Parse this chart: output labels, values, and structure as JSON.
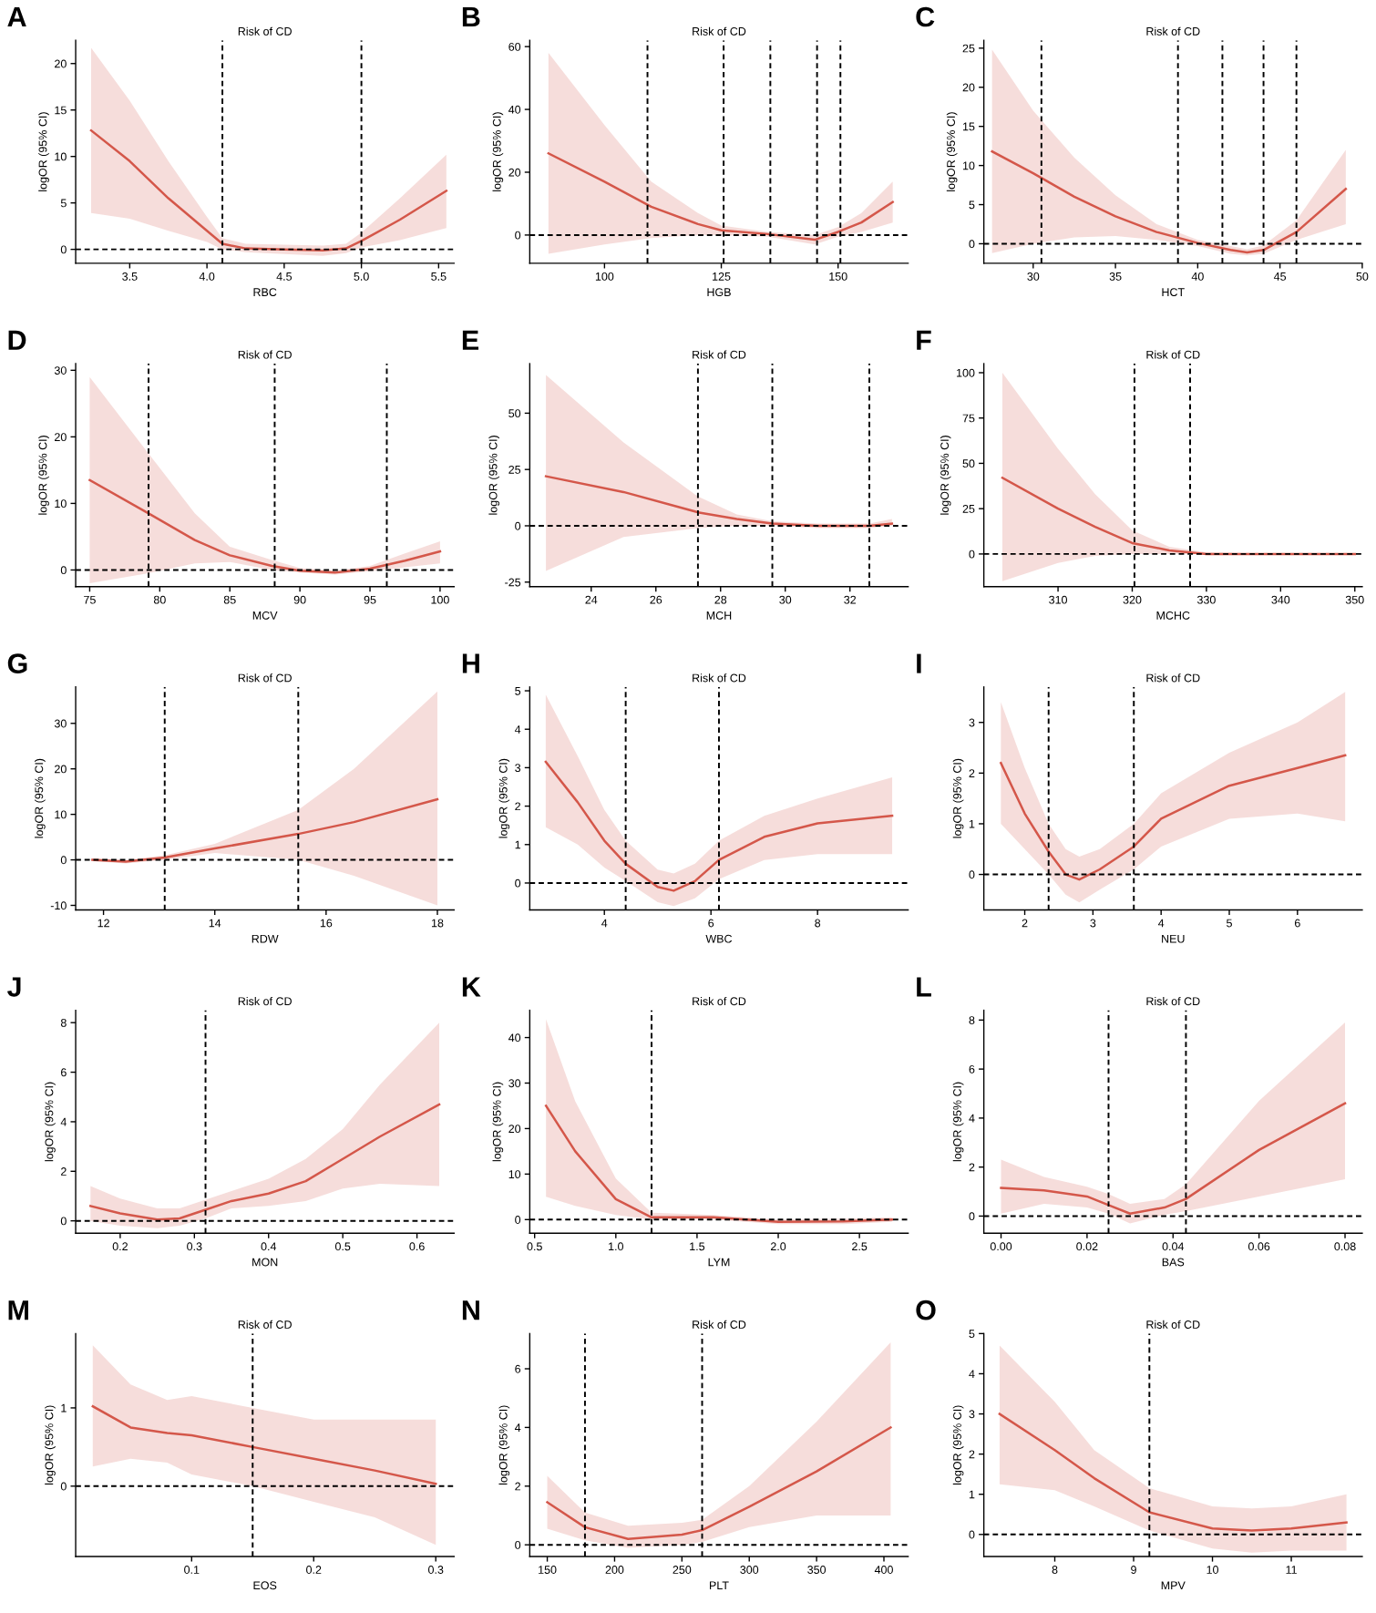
{
  "chart_data": [
    {
      "type": "line",
      "title": "Risk of CD",
      "xlabel": "RBC",
      "ylabel": "logOR (95% CI)",
      "annotations": [
        "A"
      ],
      "grid": false,
      "x": [
        3.25,
        3.5,
        3.75,
        4.0,
        4.1,
        4.25,
        4.5,
        4.75,
        4.9,
        5.0,
        5.25,
        5.55
      ],
      "series": [
        {
          "color": "#d4574a",
          "values": [
            12.8,
            9.5,
            5.5,
            2.0,
            0.6,
            0.1,
            0,
            -0.1,
            0.1,
            0.9,
            3.2,
            6.3
          ],
          "lower": [
            3.9,
            3.3,
            2.0,
            0.8,
            0,
            -0.3,
            -0.5,
            -0.7,
            -0.4,
            0.2,
            1.0,
            2.3
          ],
          "upper": [
            21.7,
            16,
            9.5,
            3.5,
            1.2,
            0.6,
            0.5,
            0.4,
            0.6,
            1.8,
            5.5,
            10.2
          ]
        }
      ],
      "xlim": [
        3.15,
        5.6
      ],
      "xticks": [
        3.5,
        {
          "value": 4,
          "label": "4.0"
        },
        4.5,
        {
          "value": 5,
          "label": "5.0"
        },
        5.5
      ],
      "ylim": [
        -1.5,
        22.5
      ],
      "yticks": [
        0,
        5,
        10,
        15,
        20
      ],
      "ref_lines": [
        {
          "axis": "x",
          "value": 4.1,
          "color": "#000000",
          "line_style": "dashed"
        },
        {
          "axis": "x",
          "value": 5.0,
          "color": "#000000",
          "line_style": "dashed"
        },
        {
          "axis": "y",
          "value": 0,
          "color": "#000000",
          "line_style": "dashed"
        }
      ]
    },
    {
      "type": "line",
      "title": "Risk of CD",
      "xlabel": "HGB",
      "ylabel": "logOR (95% CI)",
      "annotations": [
        "B"
      ],
      "grid": false,
      "x": [
        88,
        100,
        110,
        120,
        125,
        135,
        145,
        150,
        155,
        161.7
      ],
      "series": [
        {
          "color": "#d4574a",
          "values": [
            26,
            17,
            9,
            3.5,
            1.5,
            0.3,
            -1.5,
            1,
            4,
            10.5
          ],
          "lower": [
            -6,
            -3,
            -1,
            0,
            0,
            -0.5,
            -3,
            -0.5,
            1,
            4
          ],
          "upper": [
            58,
            35,
            17,
            7,
            3,
            1,
            0,
            2.5,
            7,
            17
          ]
        }
      ],
      "xlim": [
        84,
        165
      ],
      "xticks": [
        100,
        125,
        150
      ],
      "ylim": [
        -9,
        62
      ],
      "yticks": [
        0,
        20,
        40,
        60
      ],
      "ref_lines": [
        {
          "axis": "x",
          "value": 109.2,
          "color": "#000000",
          "line_style": "dashed"
        },
        {
          "axis": "x",
          "value": 125.5,
          "color": "#000000",
          "line_style": "dashed"
        },
        {
          "axis": "x",
          "value": 135.5,
          "color": "#000000",
          "line_style": "dashed"
        },
        {
          "axis": "x",
          "value": 145.5,
          "color": "#000000",
          "line_style": "dashed"
        },
        {
          "axis": "x",
          "value": 150.5,
          "color": "#000000",
          "line_style": "dashed"
        },
        {
          "axis": "y",
          "value": 0,
          "color": "#000000",
          "line_style": "dashed"
        }
      ]
    },
    {
      "type": "line",
      "title": "Risk of CD",
      "xlabel": "HCT",
      "ylabel": "logOR (95% CI)",
      "annotations": [
        "C"
      ],
      "grid": false,
      "x": [
        27.5,
        30,
        32.5,
        35,
        37.5,
        40,
        42,
        43,
        44,
        46,
        49
      ],
      "series": [
        {
          "color": "#d4574a",
          "values": [
            11.8,
            9,
            6,
            3.5,
            1.5,
            0.1,
            -0.8,
            -1.1,
            -0.8,
            1.5,
            7
          ],
          "lower": [
            -1.2,
            0,
            0.8,
            1,
            0.5,
            -0.3,
            -1.3,
            -1.5,
            -1.3,
            0.5,
            2.5
          ],
          "upper": [
            24.8,
            17,
            11,
            6.2,
            2.5,
            0.5,
            -0.3,
            -0.7,
            -0.2,
            3,
            12
          ]
        }
      ],
      "xlim": [
        27,
        50
      ],
      "xticks": [
        30,
        35,
        40,
        45,
        50
      ],
      "ylim": [
        -2.5,
        26
      ],
      "yticks": [
        0,
        5,
        10,
        15,
        20,
        25
      ],
      "ref_lines": [
        {
          "axis": "x",
          "value": 30.5,
          "color": "#000000",
          "line_style": "dashed"
        },
        {
          "axis": "x",
          "value": 38.8,
          "color": "#000000",
          "line_style": "dashed"
        },
        {
          "axis": "x",
          "value": 41.5,
          "color": "#000000",
          "line_style": "dashed"
        },
        {
          "axis": "x",
          "value": 44,
          "color": "#000000",
          "line_style": "dashed"
        },
        {
          "axis": "x",
          "value": 46,
          "color": "#000000",
          "line_style": "dashed"
        },
        {
          "axis": "y",
          "value": 0,
          "color": "#000000",
          "line_style": "dashed"
        }
      ]
    },
    {
      "type": "line",
      "title": "Risk of CD",
      "xlabel": "MCV",
      "ylabel": "logOR (95% CI)",
      "annotations": [
        "D"
      ],
      "grid": false,
      "x": [
        75,
        79.2,
        82.5,
        85,
        88,
        90,
        92.5,
        95,
        97.5,
        100
      ],
      "series": [
        {
          "color": "#d4574a",
          "values": [
            13.5,
            8.5,
            4.5,
            2.2,
            0.6,
            -0.1,
            -0.4,
            0.2,
            1.4,
            2.8
          ],
          "lower": [
            -2,
            -0.5,
            1,
            1.2,
            0,
            -0.4,
            -0.7,
            -0.2,
            0.4,
            1
          ],
          "upper": [
            29,
            17.5,
            8.5,
            3.5,
            1.5,
            0.3,
            -0.1,
            0.6,
            2.5,
            4.3
          ]
        }
      ],
      "xlim": [
        74,
        101
      ],
      "xticks": [
        75,
        80,
        85,
        90,
        95,
        100
      ],
      "ylim": [
        -2.5,
        31
      ],
      "yticks": [
        0,
        10,
        20,
        30
      ],
      "ref_lines": [
        {
          "axis": "x",
          "value": 79.2,
          "color": "#000000",
          "line_style": "dashed"
        },
        {
          "axis": "x",
          "value": 88.2,
          "color": "#000000",
          "line_style": "dashed"
        },
        {
          "axis": "x",
          "value": 96.2,
          "color": "#000000",
          "line_style": "dashed"
        },
        {
          "axis": "y",
          "value": 0,
          "color": "#000000",
          "line_style": "dashed"
        }
      ]
    },
    {
      "type": "line",
      "title": "Risk of CD",
      "xlabel": "MCH",
      "ylabel": "logOR (95% CI)",
      "annotations": [
        "E"
      ],
      "grid": false,
      "x": [
        22.6,
        25,
        27.3,
        28.5,
        29.6,
        31,
        32.6,
        33.3
      ],
      "series": [
        {
          "color": "#d4574a",
          "values": [
            22,
            15,
            6,
            3,
            1,
            0,
            0,
            1
          ],
          "lower": [
            -20,
            -5,
            -1,
            0,
            0,
            -1,
            -1,
            0
          ],
          "upper": [
            67,
            37,
            13,
            5,
            2,
            1,
            1,
            3
          ]
        }
      ],
      "xlim": [
        22.1,
        33.8
      ],
      "xticks": [
        24,
        26,
        28,
        30,
        32
      ],
      "ylim": [
        -27,
        72
      ],
      "yticks": [
        -25,
        0,
        25,
        50
      ],
      "ref_lines": [
        {
          "axis": "x",
          "value": 27.3,
          "color": "#000000",
          "line_style": "dashed"
        },
        {
          "axis": "x",
          "value": 29.6,
          "color": "#000000",
          "line_style": "dashed"
        },
        {
          "axis": "x",
          "value": 32.6,
          "color": "#000000",
          "line_style": "dashed"
        },
        {
          "axis": "y",
          "value": 0,
          "color": "#000000",
          "line_style": "dashed"
        }
      ]
    },
    {
      "type": "line",
      "title": "Risk of CD",
      "xlabel": "MCHC",
      "ylabel": "logOR (95% CI)",
      "annotations": [
        "F"
      ],
      "grid": false,
      "x": [
        302.5,
        310,
        315,
        320,
        325,
        330,
        340,
        350
      ],
      "series": [
        {
          "color": "#d4574a",
          "values": [
            42,
            25,
            15,
            6,
            2,
            0,
            0,
            0
          ],
          "lower": [
            -15,
            -5,
            -1,
            0,
            0,
            0,
            0,
            0
          ],
          "upper": [
            100,
            58,
            33,
            13,
            4,
            1,
            0,
            0
          ]
        }
      ],
      "xlim": [
        300,
        351
      ],
      "xticks": [
        310,
        320,
        330,
        340,
        350
      ],
      "ylim": [
        -18,
        105
      ],
      "yticks": [
        0,
        25,
        50,
        75,
        100
      ],
      "ref_lines": [
        {
          "axis": "x",
          "value": 320.3,
          "color": "#000000",
          "line_style": "dashed"
        },
        {
          "axis": "x",
          "value": 327.8,
          "color": "#000000",
          "line_style": "dashed"
        },
        {
          "axis": "y",
          "value": 0,
          "color": "#000000",
          "line_style": "dashed"
        }
      ]
    },
    {
      "type": "line",
      "title": "Risk of CD",
      "xlabel": "RDW",
      "ylabel": "logOR (95% CI)",
      "annotations": [
        "G"
      ],
      "grid": false,
      "x": [
        11.8,
        12.4,
        13.1,
        14,
        15.5,
        16.5,
        18
      ],
      "series": [
        {
          "color": "#d4574a",
          "values": [
            0,
            -0.4,
            0.5,
            2.5,
            5.7,
            8.3,
            13.3
          ],
          "lower": [
            -0.3,
            -0.8,
            0,
            1.5,
            0,
            -3.5,
            -10
          ],
          "upper": [
            0.3,
            0,
            1,
            3.5,
            11,
            20,
            37
          ]
        }
      ],
      "xlim": [
        11.5,
        18.3
      ],
      "xticks": [
        12,
        14,
        16,
        18
      ],
      "ylim": [
        -11,
        38
      ],
      "yticks": [
        -10,
        0,
        10,
        20,
        30
      ],
      "ref_lines": [
        {
          "axis": "x",
          "value": 13.1,
          "color": "#000000",
          "line_style": "dashed"
        },
        {
          "axis": "x",
          "value": 15.5,
          "color": "#000000",
          "line_style": "dashed"
        },
        {
          "axis": "y",
          "value": 0,
          "color": "#000000",
          "line_style": "dashed"
        }
      ]
    },
    {
      "type": "line",
      "title": "Risk of CD",
      "xlabel": "WBC",
      "ylabel": "logOR (95% CI)",
      "annotations": [
        "H"
      ],
      "grid": false,
      "x": [
        2.9,
        3.5,
        4,
        4.4,
        5,
        5.3,
        5.7,
        6.15,
        7,
        8,
        9.4
      ],
      "series": [
        {
          "color": "#d4574a",
          "values": [
            3.15,
            2.1,
            1.1,
            0.5,
            -0.1,
            -0.2,
            0.05,
            0.6,
            1.2,
            1.55,
            1.75
          ],
          "lower": [
            1.45,
            1,
            0.4,
            0.05,
            -0.5,
            -0.6,
            -0.4,
            0.1,
            0.6,
            0.75,
            0.75
          ],
          "upper": [
            4.9,
            3.3,
            1.9,
            1.1,
            0.35,
            0.25,
            0.5,
            1.1,
            1.75,
            2.2,
            2.75
          ]
        }
      ],
      "xlim": [
        2.6,
        9.7
      ],
      "xticks": [
        4,
        6,
        8
      ],
      "ylim": [
        -0.7,
        5.1
      ],
      "yticks": [
        0,
        1,
        2,
        3,
        4,
        5
      ],
      "ref_lines": [
        {
          "axis": "x",
          "value": 4.4,
          "color": "#000000",
          "line_style": "dashed"
        },
        {
          "axis": "x",
          "value": 6.15,
          "color": "#000000",
          "line_style": "dashed"
        },
        {
          "axis": "y",
          "value": 0,
          "color": "#000000",
          "line_style": "dashed"
        }
      ]
    },
    {
      "type": "line",
      "title": "Risk of CD",
      "xlabel": "NEU",
      "ylabel": "logOR (95% CI)",
      "annotations": [
        "I"
      ],
      "grid": false,
      "x": [
        1.65,
        2,
        2.35,
        2.6,
        2.8,
        3.1,
        3.6,
        4,
        5,
        6,
        6.7
      ],
      "series": [
        {
          "color": "#d4574a",
          "values": [
            2.2,
            1.2,
            0.45,
            0,
            -0.1,
            0.1,
            0.55,
            1.1,
            1.75,
            2.1,
            2.35
          ],
          "lower": [
            1,
            0.5,
            0,
            -0.4,
            -0.55,
            -0.3,
            0.1,
            0.55,
            1.1,
            1.2,
            1.05
          ],
          "upper": [
            3.4,
            2.1,
            1,
            0.5,
            0.35,
            0.5,
            1,
            1.6,
            2.4,
            3,
            3.6
          ]
        }
      ],
      "xlim": [
        1.4,
        6.95
      ],
      "xticks": [
        2,
        3,
        4,
        5,
        6
      ],
      "ylim": [
        -0.7,
        3.7
      ],
      "yticks": [
        0,
        1,
        2,
        3
      ],
      "ref_lines": [
        {
          "axis": "x",
          "value": 2.35,
          "color": "#000000",
          "line_style": "dashed"
        },
        {
          "axis": "x",
          "value": 3.6,
          "color": "#000000",
          "line_style": "dashed"
        },
        {
          "axis": "y",
          "value": 0,
          "color": "#000000",
          "line_style": "dashed"
        }
      ]
    },
    {
      "type": "line",
      "title": "Risk of CD",
      "xlabel": "MON",
      "ylabel": "logOR (95% CI)",
      "annotations": [
        "J"
      ],
      "grid": false,
      "x": [
        0.16,
        0.2,
        0.25,
        0.28,
        0.315,
        0.35,
        0.4,
        0.45,
        0.5,
        0.55,
        0.63
      ],
      "series": [
        {
          "color": "#d4574a",
          "values": [
            0.6,
            0.3,
            0.05,
            0.1,
            0.45,
            0.8,
            1.1,
            1.6,
            2.5,
            3.4,
            4.7
          ],
          "lower": [
            0,
            -0.2,
            -0.3,
            -0.2,
            0.1,
            0.5,
            0.6,
            0.8,
            1.3,
            1.5,
            1.4
          ],
          "upper": [
            1.4,
            0.9,
            0.5,
            0.5,
            0.85,
            1.2,
            1.7,
            2.5,
            3.7,
            5.5,
            8
          ]
        }
      ],
      "xlim": [
        0.14,
        0.65
      ],
      "xticks": [
        0.2,
        0.3,
        0.4,
        0.5,
        0.6
      ],
      "ylim": [
        -0.5,
        8.5
      ],
      "yticks": [
        0,
        2,
        4,
        6,
        8
      ],
      "ref_lines": [
        {
          "axis": "x",
          "value": 0.315,
          "color": "#000000",
          "line_style": "dashed"
        },
        {
          "axis": "y",
          "value": 0,
          "color": "#000000",
          "line_style": "dashed"
        }
      ]
    },
    {
      "type": "line",
      "title": "Risk of CD",
      "xlabel": "LYM",
      "ylabel": "logOR (95% CI)",
      "annotations": [
        "K"
      ],
      "grid": false,
      "x": [
        0.57,
        0.75,
        1.0,
        1.22,
        1.6,
        2.0,
        2.4,
        2.7
      ],
      "series": [
        {
          "color": "#d4574a",
          "values": [
            25,
            15,
            4.5,
            0.5,
            0.5,
            -0.5,
            -0.4,
            0
          ],
          "lower": [
            5,
            3,
            1,
            0,
            0,
            -1,
            -1,
            -0.5
          ],
          "upper": [
            44,
            26,
            9,
            1.5,
            1,
            0,
            0.2,
            0.5
          ]
        }
      ],
      "xlim": [
        0.47,
        2.8
      ],
      "xticks": [
        0.5,
        {
          "value": 1,
          "label": "1.0"
        },
        1.5,
        {
          "value": 2,
          "label": "2.0"
        },
        2.5
      ],
      "ylim": [
        -3,
        46
      ],
      "yticks": [
        0,
        10,
        20,
        30,
        40
      ],
      "ref_lines": [
        {
          "axis": "x",
          "value": 1.22,
          "color": "#000000",
          "line_style": "dashed"
        },
        {
          "axis": "y",
          "value": 0,
          "color": "#000000",
          "line_style": "dashed"
        }
      ]
    },
    {
      "type": "line",
      "title": "Risk of CD",
      "xlabel": "BAS",
      "ylabel": "logOR (95% CI)",
      "annotations": [
        "L"
      ],
      "grid": false,
      "x": [
        0,
        0.01,
        0.02,
        0.025,
        0.03,
        0.038,
        0.043,
        0.06,
        0.08
      ],
      "series": [
        {
          "color": "#d4574a",
          "values": [
            1.15,
            1.05,
            0.8,
            0.45,
            0.1,
            0.35,
            0.7,
            2.7,
            4.6
          ],
          "lower": [
            0.1,
            0.5,
            0.35,
            0.1,
            -0.3,
            0.05,
            0.2,
            0.8,
            1.5
          ],
          "upper": [
            2.3,
            1.6,
            1.2,
            0.9,
            0.5,
            0.7,
            1.3,
            4.7,
            7.9
          ]
        }
      ],
      "xlim": [
        -0.004,
        0.084
      ],
      "xticks": [
        {
          "value": 0,
          "label": "0.00"
        },
        {
          "value": 0.02,
          "label": "0.02"
        },
        {
          "value": 0.04,
          "label": "0.04"
        },
        {
          "value": 0.06,
          "label": "0.06"
        },
        {
          "value": 0.08,
          "label": "0.08"
        }
      ],
      "ylim": [
        -0.7,
        8.4
      ],
      "yticks": [
        0,
        2,
        4,
        6,
        8
      ],
      "ref_lines": [
        {
          "axis": "x",
          "value": 0.025,
          "color": "#000000",
          "line_style": "dashed"
        },
        {
          "axis": "x",
          "value": 0.043,
          "color": "#000000",
          "line_style": "dashed"
        },
        {
          "axis": "y",
          "value": 0,
          "color": "#000000",
          "line_style": "dashed"
        }
      ]
    },
    {
      "type": "line",
      "title": "Risk of CD",
      "xlabel": "EOS",
      "ylabel": "logOR (95% CI)",
      "annotations": [
        "M"
      ],
      "grid": false,
      "x": [
        0.019,
        0.05,
        0.08,
        0.1,
        0.15,
        0.2,
        0.25,
        0.3
      ],
      "series": [
        {
          "color": "#d4574a",
          "values": [
            1.02,
            0.75,
            0.68,
            0.65,
            0.5,
            0.35,
            0.2,
            0.03
          ],
          "lower": [
            0.25,
            0.35,
            0.3,
            0.15,
            0,
            -0.2,
            -0.4,
            -0.75
          ],
          "upper": [
            1.8,
            1.3,
            1.1,
            1.15,
            1.0,
            0.85,
            0.85,
            0.85
          ]
        }
      ],
      "xlim": [
        0.005,
        0.315
      ],
      "xticks": [
        0.1,
        0.2,
        0.3
      ],
      "ylim": [
        -0.9,
        1.95
      ],
      "yticks": [
        0,
        1
      ],
      "ref_lines": [
        {
          "axis": "x",
          "value": 0.15,
          "color": "#000000",
          "line_style": "dashed"
        },
        {
          "axis": "y",
          "value": 0,
          "color": "#000000",
          "line_style": "dashed"
        }
      ]
    },
    {
      "type": "line",
      "title": "Risk of CD",
      "xlabel": "PLT",
      "ylabel": "logOR (95% CI)",
      "annotations": [
        "N"
      ],
      "grid": false,
      "x": [
        150,
        178,
        210,
        250,
        265,
        300,
        350,
        405
      ],
      "series": [
        {
          "color": "#d4574a",
          "values": [
            1.45,
            0.6,
            0.2,
            0.35,
            0.5,
            1.3,
            2.5,
            4
          ],
          "lower": [
            0.55,
            0.15,
            -0.1,
            0,
            0.1,
            0.6,
            1,
            1
          ],
          "upper": [
            2.35,
            1.1,
            0.65,
            0.75,
            0.85,
            2,
            4.2,
            6.9
          ]
        }
      ],
      "xlim": [
        137,
        418
      ],
      "xticks": [
        150,
        200,
        250,
        300,
        350,
        400
      ],
      "ylim": [
        -0.4,
        7.2
      ],
      "yticks": [
        0,
        2,
        4,
        6
      ],
      "ref_lines": [
        {
          "axis": "x",
          "value": 178,
          "color": "#000000",
          "line_style": "dashed"
        },
        {
          "axis": "x",
          "value": 265,
          "color": "#000000",
          "line_style": "dashed"
        },
        {
          "axis": "y",
          "value": 0,
          "color": "#000000",
          "line_style": "dashed"
        }
      ]
    },
    {
      "type": "line",
      "title": "Risk of CD",
      "xlabel": "MPV",
      "ylabel": "logOR (95% CI)",
      "annotations": [
        "O"
      ],
      "grid": false,
      "x": [
        7.3,
        8,
        8.5,
        9.2,
        10,
        10.5,
        11,
        11.7
      ],
      "series": [
        {
          "color": "#d4574a",
          "values": [
            3,
            2.1,
            1.4,
            0.55,
            0.15,
            0.1,
            0.15,
            0.3
          ],
          "lower": [
            1.25,
            1.1,
            0.7,
            0.1,
            -0.35,
            -0.45,
            -0.4,
            -0.4
          ],
          "upper": [
            4.7,
            3.3,
            2.1,
            1.15,
            0.7,
            0.65,
            0.7,
            1.0
          ]
        }
      ],
      "xlim": [
        7.1,
        11.9
      ],
      "xticks": [
        8,
        9,
        10,
        11
      ],
      "ylim": [
        -0.55,
        5
      ],
      "yticks": [
        0,
        1,
        2,
        3,
        4,
        5
      ],
      "ref_lines": [
        {
          "axis": "x",
          "value": 9.2,
          "color": "#000000",
          "line_style": "dashed"
        },
        {
          "axis": "y",
          "value": 0,
          "color": "#000000",
          "line_style": "dashed"
        }
      ]
    }
  ]
}
